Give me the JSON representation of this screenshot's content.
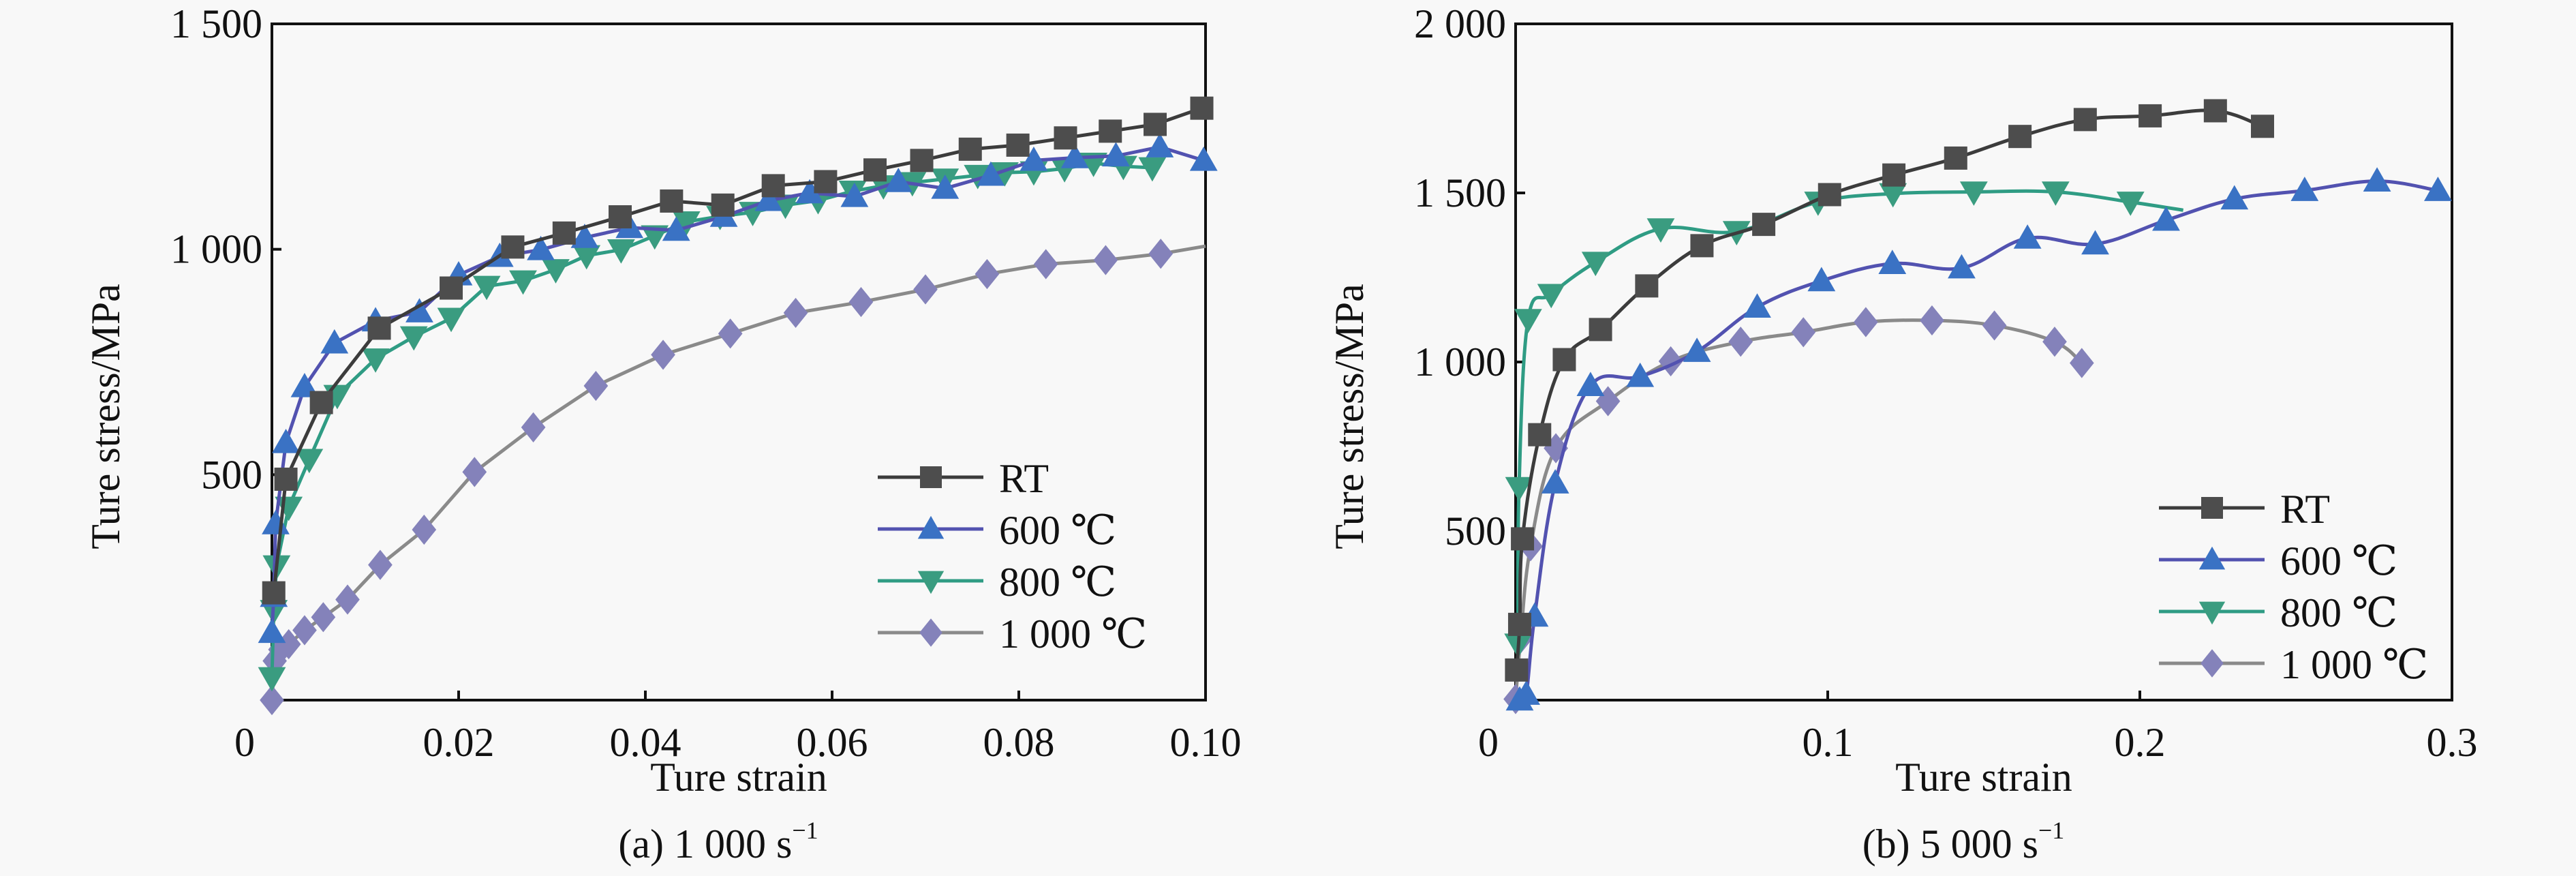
{
  "figure": {
    "panels": [
      "(a) 1 000 s⁻¹",
      "(b) 5 000 s⁻¹"
    ]
  },
  "series_style": {
    "RT": {
      "marker": "square",
      "line": "#3c3c3c",
      "fill": "#4d4d4d"
    },
    "600": {
      "marker": "triangle-up",
      "line": "#5252b0",
      "fill": "#3a72c4"
    },
    "800": {
      "marker": "triangle-down",
      "line": "#2f9c84",
      "fill": "#3a9c80"
    },
    "1000": {
      "marker": "diamond",
      "line": "#8a8a8a",
      "fill": "#8482ba"
    }
  },
  "chart_data": [
    {
      "type": "line",
      "title": "(a) 1 000 s⁻¹",
      "caption_main": "(a) 1 000 s",
      "caption_sup": "−1",
      "xlabel": "Ture strain",
      "ylabel": "Ture stress/MPa",
      "xlim": [
        0,
        0.1
      ],
      "ylim": [
        0,
        1500
      ],
      "xticks": [
        0,
        0.02,
        0.04,
        0.06,
        0.08,
        0.1
      ],
      "xtick_labels": [
        "0",
        "0.02",
        "0.04",
        "0.06",
        "0.08",
        "0.10"
      ],
      "yticks": [
        500,
        1000,
        1500
      ],
      "ytick_labels": [
        "500",
        "1 000",
        "1 500"
      ],
      "grid": false,
      "legend_position": "lower-right",
      "smooth": false,
      "series": [
        {
          "key": "RT",
          "name": "RT",
          "x": [
            0.0002,
            0.0015,
            0.0053,
            0.0115,
            0.0192,
            0.0258,
            0.0313,
            0.0373,
            0.0428,
            0.0483,
            0.0537,
            0.0593,
            0.0646,
            0.0696,
            0.0748,
            0.0799,
            0.085,
            0.0898,
            0.0946,
            0.0996
          ],
          "y": [
            238,
            490,
            660,
            825,
            914,
            1005,
            1036,
            1072,
            1107,
            1098,
            1141,
            1150,
            1176,
            1197,
            1222,
            1231,
            1247,
            1262,
            1277,
            1313
          ]
        },
        {
          "key": "600",
          "name": "600 ℃",
          "x": [
            0.0,
            0.0002,
            0.0004,
            0.0015,
            0.0035,
            0.0067,
            0.0111,
            0.0158,
            0.02,
            0.0244,
            0.0288,
            0.0335,
            0.0383,
            0.0433,
            0.0484,
            0.0532,
            0.0576,
            0.0624,
            0.0671,
            0.0721,
            0.077,
            0.0816,
            0.086,
            0.0904,
            0.0951,
            0.0998
          ],
          "y": [
            150,
            230,
            391,
            571,
            695,
            792,
            841,
            861,
            943,
            984,
            999,
            1026,
            1048,
            1042,
            1073,
            1108,
            1125,
            1117,
            1150,
            1135,
            1164,
            1197,
            1203,
            1207,
            1227,
            1197
          ]
        },
        {
          "key": "800",
          "name": "800 ℃",
          "x": [
            0.0,
            0.0002,
            0.0005,
            0.0018,
            0.004,
            0.007,
            0.0111,
            0.0152,
            0.0192,
            0.023,
            0.0269,
            0.0304,
            0.0337,
            0.0374,
            0.041,
            0.0444,
            0.048,
            0.0515,
            0.055,
            0.0585,
            0.0622,
            0.0655,
            0.0686,
            0.0721,
            0.0756,
            0.0785,
            0.0816,
            0.0849,
            0.088,
            0.0912,
            0.0943
          ],
          "y": [
            50,
            199,
            298,
            428,
            534,
            676,
            757,
            806,
            847,
            918,
            930,
            955,
            986,
            999,
            1030,
            1061,
            1073,
            1082,
            1098,
            1108,
            1129,
            1141,
            1148,
            1156,
            1164,
            1170,
            1172,
            1179,
            1191,
            1184,
            1181
          ]
        },
        {
          "key": "1000",
          "name": "1 000 ℃",
          "x": [
            0.0,
            0.0003,
            0.0009,
            0.0018,
            0.0035,
            0.0055,
            0.0081,
            0.0116,
            0.0163,
            0.0217,
            0.028,
            0.0347,
            0.0419,
            0.0491,
            0.0561,
            0.0631,
            0.07,
            0.0766,
            0.0829,
            0.0893,
            0.0952
          ],
          "y": [
            0,
            87,
            112,
            124,
            155,
            184,
            223,
            300,
            378,
            506,
            605,
            697,
            766,
            813,
            859,
            883,
            911,
            945,
            967,
            976,
            990
          ],
          "line_end": [
            0.1,
            1007
          ]
        }
      ]
    },
    {
      "type": "line",
      "title": "(b) 5 000 s⁻¹",
      "caption_main": "(b) 5 000 s",
      "caption_sup": "−1",
      "xlabel": "Ture strain",
      "ylabel": "Ture stress/MPa",
      "xlim": [
        0,
        0.3
      ],
      "ylim": [
        0,
        2000
      ],
      "xticks": [
        0,
        0.1,
        0.2,
        0.3
      ],
      "xtick_labels": [
        "0",
        "0.1",
        "0.2",
        "0.3"
      ],
      "yticks": [
        500,
        1000,
        1500,
        2000
      ],
      "ytick_labels": [
        "500",
        "1 000",
        "1 500",
        "2 000"
      ],
      "grid": false,
      "legend_position": "lower-right",
      "smooth": true,
      "series": [
        {
          "key": "RT",
          "name": "RT",
          "x": [
            0.0003,
            0.0013,
            0.0022,
            0.0077,
            0.0156,
            0.0272,
            0.042,
            0.0597,
            0.0795,
            0.1006,
            0.1212,
            0.141,
            0.1616,
            0.1825,
            0.2033,
            0.2242,
            0.2393
          ],
          "y": [
            89,
            224,
            477,
            785,
            1007,
            1096,
            1225,
            1344,
            1407,
            1495,
            1553,
            1603,
            1667,
            1717,
            1728,
            1743,
            1697
          ]
        },
        {
          "key": "600",
          "name": "600 ℃",
          "x": [
            0.0013,
            0.0034,
            0.0061,
            0.0127,
            0.024,
            0.0399,
            0.0581,
            0.0774,
            0.098,
            0.1207,
            0.1429,
            0.164,
            0.1857,
            0.2084,
            0.2303,
            0.2528,
            0.276,
            0.2955
          ],
          "y": [
            0,
            17,
            248,
            642,
            930,
            957,
            1031,
            1162,
            1240,
            1291,
            1278,
            1366,
            1349,
            1419,
            1482,
            1507,
            1535,
            1507
          ]
        },
        {
          "key": "800",
          "name": "800 ℃",
          "x": [
            0.0008,
            0.0011,
            0.004,
            0.0114,
            0.0256,
            0.0465,
            0.0708,
            0.0969,
            0.1209,
            0.1468,
            0.173,
            0.197
          ],
          "y": [
            166,
            629,
            1126,
            1200,
            1295,
            1394,
            1386,
            1473,
            1498,
            1503,
            1503,
            1473
          ],
          "line_end": [
            0.2139,
            1449
          ]
        },
        {
          "key": "1000",
          "name": "1 000 ℃",
          "x": [
            0.0,
            0.0016,
            0.0048,
            0.0129,
            0.0296,
            0.0497,
            0.0721,
            0.0922,
            0.1122,
            0.1334,
            0.1534,
            0.1727,
            0.1814
          ],
          "y": [
            3,
            182,
            455,
            745,
            884,
            1002,
            1060,
            1088,
            1118,
            1123,
            1108,
            1060,
            997
          ]
        }
      ]
    }
  ]
}
